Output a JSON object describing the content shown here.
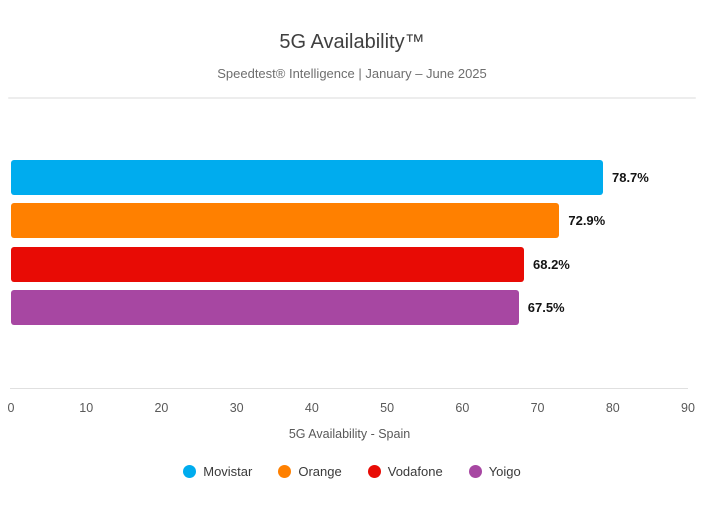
{
  "header": {
    "title": "5G Availability™",
    "subtitle": "Speedtest® Intelligence | January – June 2025"
  },
  "chart_data": {
    "type": "bar",
    "orientation": "horizontal",
    "title": "5G Availability™",
    "subtitle": "Speedtest® Intelligence | January – June 2025",
    "categories": [
      "Movistar",
      "Orange",
      "Vodafone",
      "Yoigo"
    ],
    "values": [
      78.7,
      72.9,
      68.2,
      67.5
    ],
    "value_labels": [
      "78.7%",
      "72.9%",
      "68.2%",
      "67.5%"
    ],
    "colors": [
      "#00ACEE",
      "#FF8000",
      "#E80B05",
      "#A747A2"
    ],
    "xlabel": "5G Availability - Spain",
    "xlim": [
      0,
      90
    ],
    "xticks": [
      0,
      10,
      20,
      30,
      40,
      50,
      60,
      70,
      80,
      90
    ],
    "grid": false,
    "legend_position": "bottom",
    "legend": [
      "Movistar",
      "Orange",
      "Vodafone",
      "Yoigo"
    ]
  }
}
